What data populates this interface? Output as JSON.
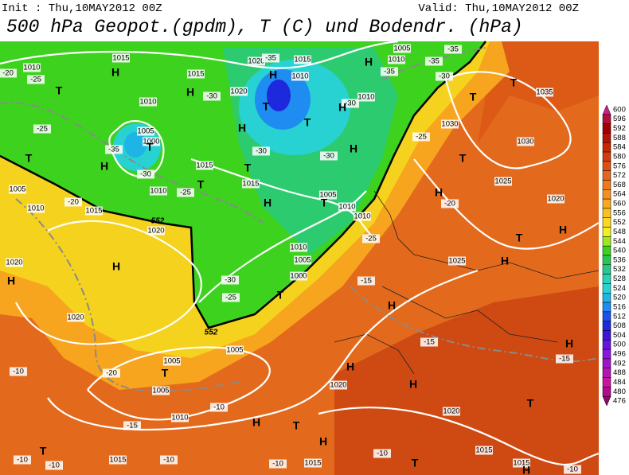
{
  "header": {
    "init": "Init : Thu,10MAY2012 00Z",
    "valid": "Valid: Thu,10MAY2012 00Z",
    "title": "500 hPa Geopot.(gpdm), T (C) und Bodendr. (hPa)"
  },
  "colorbar": {
    "levels": [
      600,
      596,
      592,
      588,
      584,
      580,
      576,
      572,
      568,
      564,
      560,
      556,
      552,
      548,
      544,
      540,
      536,
      532,
      528,
      524,
      520,
      516,
      512,
      508,
      504,
      500,
      496,
      492,
      488,
      484,
      480,
      476
    ],
    "colors": [
      "#d01c8b",
      "#b0103a",
      "#a00000",
      "#b41400",
      "#c82800",
      "#d23c0a",
      "#dc5014",
      "#e6641e",
      "#ee7a1e",
      "#f59020",
      "#faa81e",
      "#fcc01e",
      "#fcd81e",
      "#f0f01e",
      "#a0e61e",
      "#3cd21e",
      "#28c850",
      "#28c88c",
      "#28d2b4",
      "#28d2d2",
      "#1eb4e6",
      "#1e8cf0",
      "#1e50f0",
      "#1e28dc",
      "#3c14dc",
      "#6414dc",
      "#8c14dc",
      "#a014c8",
      "#b414b4",
      "#c814a0",
      "#b40a8c",
      "#8c0a6e"
    ]
  },
  "labels": {
    "pressure": [
      1015,
      1010,
      1015,
      1020,
      1015,
      1010,
      1020,
      1010,
      1005,
      1000,
      1015,
      1015,
      1010,
      1005,
      1010,
      1015,
      1020,
      1005,
      1010,
      1010,
      1010,
      1005,
      1000,
      1020,
      1020,
      1005,
      1005,
      1005,
      1010,
      1025,
      1030,
      1035,
      1030,
      1025,
      1020,
      1020,
      1020,
      1015,
      1015,
      1015,
      1015,
      1010,
      1010,
      1005
    ],
    "temperature": [
      -25,
      -25,
      -35,
      -30,
      -25,
      -30,
      -35,
      -30,
      -30,
      -30,
      -25,
      -20,
      -20,
      -25,
      -15,
      -30,
      -25,
      -20,
      -15,
      -15,
      -10,
      -10,
      -15,
      -10,
      -10,
      -10,
      -10,
      -10,
      -10,
      -35,
      -35,
      -35,
      -30,
      -20
    ],
    "centers": [
      "H",
      "T",
      "H",
      "H",
      "T",
      "T",
      "H",
      "H",
      "T",
      "H",
      "T",
      "H",
      "T",
      "T",
      "H",
      "H",
      "T",
      "H",
      "H",
      "T",
      "T",
      "T",
      "T",
      "H",
      "T",
      "H",
      "H",
      "H",
      "T",
      "H",
      "H",
      "H",
      "H",
      "T",
      "H",
      "T",
      "T",
      "H",
      "T"
    ],
    "geopotential": [
      552,
      552
    ]
  }
}
